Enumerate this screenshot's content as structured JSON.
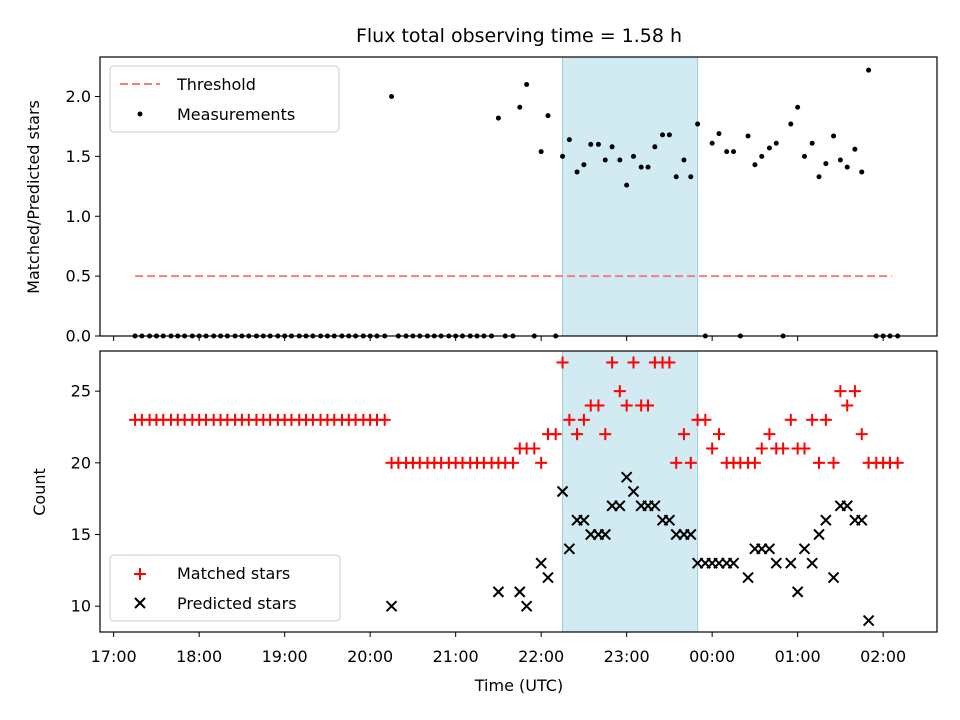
{
  "chart_data": [
    {
      "type": "scatter",
      "title": "Flux total observing time = 1.58 h",
      "xlabel": "",
      "ylabel": "Matched/Predicted stars",
      "ylim": [
        0,
        2.33
      ],
      "yticks": [
        "0.0",
        "0.5",
        "1.0",
        "1.5",
        "2.0"
      ],
      "ytick_values": [
        0,
        0.5,
        1.0,
        1.5,
        2.0
      ],
      "legend_position": "top-left",
      "highlight_band": {
        "start": 22.25,
        "end": 23.83,
        "color": "#add8e6"
      },
      "series": [
        {
          "name": "Threshold",
          "style": "dashed-line",
          "color": "#f08080",
          "x": [
            17.25,
            26.1
          ],
          "y": [
            0.5,
            0.5
          ]
        },
        {
          "name": "Measurements",
          "style": "dots",
          "color": "#000000",
          "points": [
            [
              17.25,
              0
            ],
            [
              17.33,
              0
            ],
            [
              17.42,
              0
            ],
            [
              17.5,
              0
            ],
            [
              17.58,
              0
            ],
            [
              17.67,
              0
            ],
            [
              17.75,
              0
            ],
            [
              17.83,
              0
            ],
            [
              17.92,
              0
            ],
            [
              18.0,
              0
            ],
            [
              18.08,
              0
            ],
            [
              18.17,
              0
            ],
            [
              18.25,
              0
            ],
            [
              18.33,
              0
            ],
            [
              18.42,
              0
            ],
            [
              18.5,
              0
            ],
            [
              18.58,
              0
            ],
            [
              18.67,
              0
            ],
            [
              18.75,
              0
            ],
            [
              18.83,
              0
            ],
            [
              18.92,
              0
            ],
            [
              19.0,
              0
            ],
            [
              19.08,
              0
            ],
            [
              19.17,
              0
            ],
            [
              19.25,
              0
            ],
            [
              19.33,
              0
            ],
            [
              19.42,
              0
            ],
            [
              19.5,
              0
            ],
            [
              19.58,
              0
            ],
            [
              19.67,
              0
            ],
            [
              19.75,
              0
            ],
            [
              19.83,
              0
            ],
            [
              19.92,
              0
            ],
            [
              20.0,
              0
            ],
            [
              20.08,
              0
            ],
            [
              20.17,
              0
            ],
            [
              20.25,
              2.0
            ],
            [
              20.33,
              0
            ],
            [
              20.42,
              0
            ],
            [
              20.5,
              0
            ],
            [
              20.58,
              0
            ],
            [
              20.67,
              0
            ],
            [
              20.75,
              0
            ],
            [
              20.83,
              0
            ],
            [
              20.92,
              0
            ],
            [
              21.0,
              0
            ],
            [
              21.08,
              0
            ],
            [
              21.17,
              0
            ],
            [
              21.25,
              0
            ],
            [
              21.33,
              0
            ],
            [
              21.42,
              0
            ],
            [
              21.58,
              0
            ],
            [
              21.67,
              0
            ],
            [
              21.92,
              0
            ],
            [
              21.5,
              1.82
            ],
            [
              21.75,
              1.91
            ],
            [
              21.83,
              2.1
            ],
            [
              22.0,
              1.54
            ],
            [
              22.08,
              1.84
            ],
            [
              22.17,
              0
            ],
            [
              22.25,
              1.5
            ],
            [
              22.33,
              1.64
            ],
            [
              22.42,
              1.37
            ],
            [
              22.5,
              1.43
            ],
            [
              22.58,
              1.6
            ],
            [
              22.67,
              1.6
            ],
            [
              22.75,
              1.47
            ],
            [
              22.83,
              1.58
            ],
            [
              22.92,
              1.47
            ],
            [
              23.0,
              1.26
            ],
            [
              23.08,
              1.5
            ],
            [
              23.17,
              1.41
            ],
            [
              23.25,
              1.41
            ],
            [
              23.33,
              1.58
            ],
            [
              23.42,
              1.68
            ],
            [
              23.5,
              1.68
            ],
            [
              23.58,
              1.33
            ],
            [
              23.67,
              1.47
            ],
            [
              23.75,
              1.33
            ],
            [
              23.83,
              1.77
            ],
            [
              23.92,
              0
            ],
            [
              24.0,
              1.61
            ],
            [
              24.08,
              1.69
            ],
            [
              24.17,
              1.54
            ],
            [
              24.25,
              1.54
            ],
            [
              24.33,
              0
            ],
            [
              24.42,
              1.67
            ],
            [
              24.5,
              1.43
            ],
            [
              24.58,
              1.5
            ],
            [
              24.67,
              1.57
            ],
            [
              24.75,
              1.61
            ],
            [
              24.83,
              0
            ],
            [
              24.92,
              1.77
            ],
            [
              25.0,
              1.91
            ],
            [
              25.08,
              1.5
            ],
            [
              25.17,
              1.61
            ],
            [
              25.25,
              1.33
            ],
            [
              25.33,
              1.44
            ],
            [
              25.42,
              1.67
            ],
            [
              25.5,
              1.47
            ],
            [
              25.58,
              1.41
            ],
            [
              25.67,
              1.56
            ],
            [
              25.75,
              1.37
            ],
            [
              25.83,
              2.22
            ],
            [
              25.92,
              0
            ],
            [
              26.0,
              0
            ],
            [
              26.08,
              0
            ],
            [
              26.17,
              0
            ]
          ]
        }
      ]
    },
    {
      "type": "scatter",
      "title": "",
      "xlabel": "Time (UTC)",
      "ylabel": "Count",
      "ylim": [
        8.2,
        27.8
      ],
      "yticks": [
        "10",
        "15",
        "20",
        "25"
      ],
      "ytick_values": [
        10,
        15,
        20,
        25
      ],
      "xticks": [
        "17:00",
        "18:00",
        "19:00",
        "20:00",
        "21:00",
        "22:00",
        "23:00",
        "00:00",
        "01:00",
        "02:00"
      ],
      "xtick_values": [
        17,
        18,
        19,
        20,
        21,
        22,
        23,
        24,
        25,
        26
      ],
      "xlim": [
        16.84,
        26.63
      ],
      "legend_position": "bottom-left",
      "highlight_band": {
        "start": 22.25,
        "end": 23.83,
        "color": "#add8e6"
      },
      "series": [
        {
          "name": "Matched stars",
          "style": "plus",
          "color": "#ff0000",
          "points": [
            [
              17.25,
              23
            ],
            [
              17.33,
              23
            ],
            [
              17.42,
              23
            ],
            [
              17.5,
              23
            ],
            [
              17.58,
              23
            ],
            [
              17.67,
              23
            ],
            [
              17.75,
              23
            ],
            [
              17.83,
              23
            ],
            [
              17.92,
              23
            ],
            [
              18.0,
              23
            ],
            [
              18.08,
              23
            ],
            [
              18.17,
              23
            ],
            [
              18.25,
              23
            ],
            [
              18.33,
              23
            ],
            [
              18.42,
              23
            ],
            [
              18.5,
              23
            ],
            [
              18.58,
              23
            ],
            [
              18.67,
              23
            ],
            [
              18.75,
              23
            ],
            [
              18.83,
              23
            ],
            [
              18.92,
              23
            ],
            [
              19.0,
              23
            ],
            [
              19.08,
              23
            ],
            [
              19.17,
              23
            ],
            [
              19.25,
              23
            ],
            [
              19.33,
              23
            ],
            [
              19.42,
              23
            ],
            [
              19.5,
              23
            ],
            [
              19.58,
              23
            ],
            [
              19.67,
              23
            ],
            [
              19.75,
              23
            ],
            [
              19.83,
              23
            ],
            [
              19.92,
              23
            ],
            [
              20.0,
              23
            ],
            [
              20.08,
              23
            ],
            [
              20.17,
              23
            ],
            [
              20.25,
              20
            ],
            [
              20.33,
              20
            ],
            [
              20.42,
              20
            ],
            [
              20.5,
              20
            ],
            [
              20.58,
              20
            ],
            [
              20.67,
              20
            ],
            [
              20.75,
              20
            ],
            [
              20.83,
              20
            ],
            [
              20.92,
              20
            ],
            [
              21.0,
              20
            ],
            [
              21.08,
              20
            ],
            [
              21.17,
              20
            ],
            [
              21.25,
              20
            ],
            [
              21.33,
              20
            ],
            [
              21.42,
              20
            ],
            [
              21.5,
              20
            ],
            [
              21.58,
              20
            ],
            [
              21.67,
              20
            ],
            [
              21.75,
              21
            ],
            [
              21.83,
              21
            ],
            [
              21.92,
              21
            ],
            [
              22.0,
              20
            ],
            [
              22.08,
              22
            ],
            [
              22.17,
              22
            ],
            [
              22.25,
              27
            ],
            [
              22.33,
              23
            ],
            [
              22.42,
              22
            ],
            [
              22.5,
              23
            ],
            [
              22.58,
              24
            ],
            [
              22.67,
              24
            ],
            [
              22.75,
              22
            ],
            [
              22.83,
              27
            ],
            [
              22.92,
              25
            ],
            [
              23.0,
              24
            ],
            [
              23.08,
              27
            ],
            [
              23.17,
              24
            ],
            [
              23.25,
              24
            ],
            [
              23.33,
              27
            ],
            [
              23.42,
              27
            ],
            [
              23.5,
              27
            ],
            [
              23.58,
              20
            ],
            [
              23.67,
              22
            ],
            [
              23.75,
              20
            ],
            [
              23.83,
              23
            ],
            [
              23.92,
              23
            ],
            [
              24.0,
              21
            ],
            [
              24.08,
              22
            ],
            [
              24.17,
              20
            ],
            [
              24.25,
              20
            ],
            [
              24.33,
              20
            ],
            [
              24.42,
              20
            ],
            [
              24.5,
              20
            ],
            [
              24.58,
              21
            ],
            [
              24.67,
              22
            ],
            [
              24.75,
              21
            ],
            [
              24.83,
              21
            ],
            [
              24.92,
              23
            ],
            [
              25.0,
              21
            ],
            [
              25.08,
              21
            ],
            [
              25.17,
              23
            ],
            [
              25.25,
              20
            ],
            [
              25.33,
              23
            ],
            [
              25.42,
              20
            ],
            [
              25.5,
              25
            ],
            [
              25.58,
              24
            ],
            [
              25.67,
              25
            ],
            [
              25.75,
              22
            ],
            [
              25.83,
              20
            ],
            [
              25.92,
              20
            ],
            [
              26.0,
              20
            ],
            [
              26.08,
              20
            ],
            [
              26.17,
              20
            ]
          ]
        },
        {
          "name": "Predicted stars",
          "style": "x",
          "color": "#000000",
          "points": [
            [
              20.25,
              10
            ],
            [
              21.5,
              11
            ],
            [
              21.75,
              11
            ],
            [
              21.83,
              10
            ],
            [
              22.0,
              13
            ],
            [
              22.08,
              12
            ],
            [
              22.25,
              18
            ],
            [
              22.33,
              14
            ],
            [
              22.42,
              16
            ],
            [
              22.5,
              16
            ],
            [
              22.58,
              15
            ],
            [
              22.67,
              15
            ],
            [
              22.75,
              15
            ],
            [
              22.83,
              17
            ],
            [
              22.92,
              17
            ],
            [
              23.0,
              19
            ],
            [
              23.08,
              18
            ],
            [
              23.17,
              17
            ],
            [
              23.25,
              17
            ],
            [
              23.33,
              17
            ],
            [
              23.42,
              16
            ],
            [
              23.5,
              16
            ],
            [
              23.58,
              15
            ],
            [
              23.67,
              15
            ],
            [
              23.75,
              15
            ],
            [
              23.83,
              13
            ],
            [
              23.92,
              13
            ],
            [
              24.0,
              13
            ],
            [
              24.08,
              13
            ],
            [
              24.17,
              13
            ],
            [
              24.25,
              13
            ],
            [
              24.42,
              12
            ],
            [
              24.5,
              14
            ],
            [
              24.58,
              14
            ],
            [
              24.67,
              14
            ],
            [
              24.75,
              13
            ],
            [
              24.92,
              13
            ],
            [
              25.0,
              11
            ],
            [
              25.08,
              14
            ],
            [
              25.17,
              13
            ],
            [
              25.25,
              15
            ],
            [
              25.33,
              16
            ],
            [
              25.42,
              12
            ],
            [
              25.5,
              17
            ],
            [
              25.58,
              17
            ],
            [
              25.67,
              16
            ],
            [
              25.75,
              16
            ],
            [
              25.83,
              9
            ]
          ]
        }
      ]
    }
  ]
}
